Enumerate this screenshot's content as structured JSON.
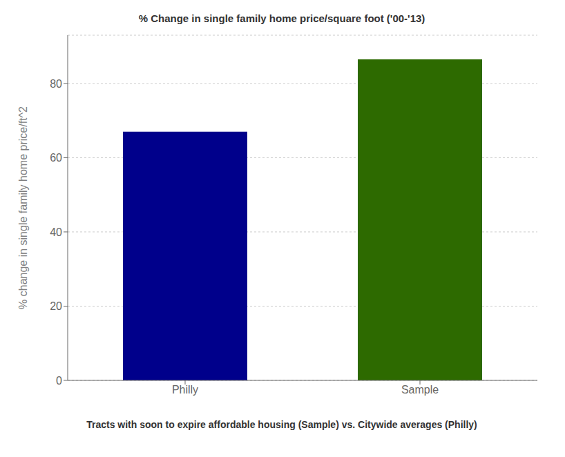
{
  "chart_data": {
    "type": "bar",
    "title": "% Change in single family home price/square foot ('00-'13)",
    "categories": [
      "Philly",
      "Sample"
    ],
    "values": [
      67.0,
      86.5
    ],
    "colors": [
      "#00008B",
      "#2D6A00"
    ],
    "xlabel": "Tracts with soon to expire affordable housing (Sample) vs. Citywide averages (Philly)",
    "ylabel": "% change in single family home price/ft^2",
    "ylim": [
      0,
      93
    ],
    "yticks": [
      0,
      20,
      40,
      60,
      80
    ],
    "grid": true
  }
}
